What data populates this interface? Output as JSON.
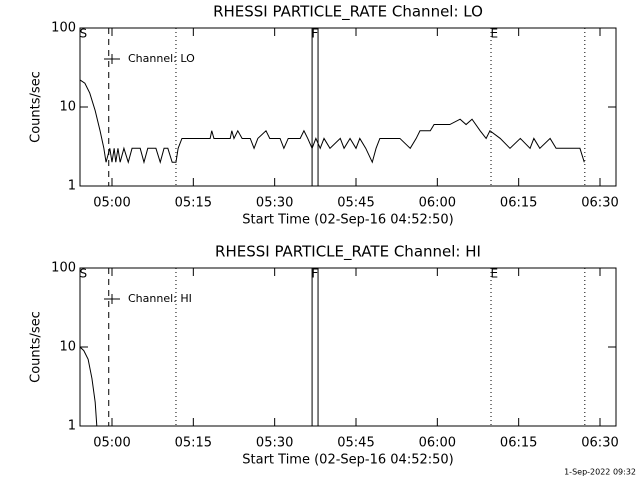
{
  "chart_data": [
    {
      "type": "line",
      "title": "RHESSI PARTICLE_RATE Channel: LO",
      "xlabel": "Start Time (02-Sep-16 04:52:50)",
      "ylabel": "Counts/sec",
      "log_y": true,
      "ylim": [
        1,
        100
      ],
      "yticks": [
        1,
        10,
        100
      ],
      "xlim": [
        294.1,
        392.95
      ],
      "xticks": [
        {
          "value": 300,
          "label": "05:00"
        },
        {
          "value": 315,
          "label": "05:15"
        },
        {
          "value": 330,
          "label": "05:30"
        },
        {
          "value": 345,
          "label": "05:45"
        },
        {
          "value": 360,
          "label": "06:00"
        },
        {
          "value": 375,
          "label": "06:15"
        },
        {
          "value": 390,
          "label": "06:30"
        }
      ],
      "legend": "upper left",
      "series": [
        {
          "name": "Channel: LO",
          "color": "#000000",
          "x": [
            294.1,
            295.0,
            295.9,
            296.9,
            297.8,
            298.5,
            298.9,
            299.6,
            300.0,
            300.4,
            300.7,
            301.1,
            301.5,
            302.2,
            303.0,
            303.7,
            305.2,
            305.9,
            306.6,
            308.1,
            308.9,
            309.6,
            310.3,
            311.1,
            311.8,
            312.2,
            312.9,
            316.2,
            318.1,
            318.4,
            318.8,
            321.8,
            322.1,
            322.5,
            323.2,
            324.0,
            325.5,
            326.2,
            326.9,
            328.4,
            329.1,
            331.0,
            331.7,
            332.5,
            334.7,
            335.4,
            336.1,
            336.9,
            337.6,
            338.4,
            339.1,
            340.2,
            342.1,
            342.8,
            343.9,
            345.0,
            345.7,
            346.8,
            348.0,
            348.7,
            349.4,
            353.1,
            355.0,
            356.1,
            356.8,
            358.7,
            359.4,
            362.3,
            364.2,
            365.3,
            366.4,
            367.9,
            369.0,
            369.7,
            371.6,
            373.4,
            375.3,
            377.1,
            377.8,
            378.9,
            380.8,
            381.9,
            382.6,
            386.3,
            387.1
          ],
          "values": [
            22,
            20,
            15,
            9,
            5,
            3,
            2,
            3,
            2,
            3,
            2,
            3,
            2,
            3,
            2,
            3,
            3,
            2,
            3,
            3,
            2,
            3,
            3,
            2,
            2,
            3,
            4,
            4,
            4,
            5,
            4,
            4,
            5,
            4,
            5,
            4,
            4,
            3,
            4,
            5,
            4,
            4,
            3,
            4,
            4,
            5,
            4,
            3,
            4,
            3,
            4,
            3,
            4,
            3,
            4,
            3,
            4,
            3,
            2,
            3,
            4,
            4,
            3,
            4,
            5,
            5,
            6,
            6,
            7,
            6,
            7,
            5,
            4,
            5,
            4,
            3,
            4,
            3,
            4,
            3,
            4,
            3,
            3,
            3,
            2
          ]
        }
      ],
      "vlines": [
        {
          "x": 299.4,
          "style": "dashed"
        },
        {
          "x": 311.8,
          "style": "dotted"
        },
        {
          "x": 336.9,
          "style": "solid"
        },
        {
          "x": 338.0,
          "style": "solid"
        },
        {
          "x": 369.9,
          "style": "dotted"
        },
        {
          "x": 387.2,
          "style": "dotted"
        }
      ],
      "annotations": [
        {
          "text": "S",
          "x": 294.7
        },
        {
          "text": "F",
          "x": 337.4
        },
        {
          "text": "E",
          "x": 370.5
        }
      ]
    },
    {
      "type": "line",
      "title": "RHESSI PARTICLE_RATE Channel: HI",
      "xlabel": "Start Time (02-Sep-16 04:52:50)",
      "ylabel": "Counts/sec",
      "log_y": true,
      "ylim": [
        1,
        100
      ],
      "yticks": [
        1,
        10,
        100
      ],
      "xlim": [
        294.1,
        392.95
      ],
      "xticks": [
        {
          "value": 300,
          "label": "05:00"
        },
        {
          "value": 315,
          "label": "05:15"
        },
        {
          "value": 330,
          "label": "05:30"
        },
        {
          "value": 345,
          "label": "05:45"
        },
        {
          "value": 360,
          "label": "06:00"
        },
        {
          "value": 375,
          "label": "06:15"
        },
        {
          "value": 390,
          "label": "06:30"
        }
      ],
      "legend": "upper left",
      "series": [
        {
          "name": "Channel: HI",
          "color": "#000000",
          "x": [
            294.1,
            294.8,
            295.6,
            296.3,
            296.9,
            297.2
          ],
          "values": [
            10,
            9,
            7,
            4,
            2,
            1
          ]
        }
      ],
      "vlines": [
        {
          "x": 299.4,
          "style": "dashed"
        },
        {
          "x": 311.8,
          "style": "dotted"
        },
        {
          "x": 336.9,
          "style": "solid"
        },
        {
          "x": 338.0,
          "style": "solid"
        },
        {
          "x": 369.9,
          "style": "dotted"
        },
        {
          "x": 387.2,
          "style": "dotted"
        }
      ],
      "annotations": [
        {
          "text": "S",
          "x": 294.7
        },
        {
          "text": "F",
          "x": 337.4
        },
        {
          "text": "E",
          "x": 370.5
        }
      ]
    }
  ],
  "footer": "1-Sep-2022 09:32"
}
